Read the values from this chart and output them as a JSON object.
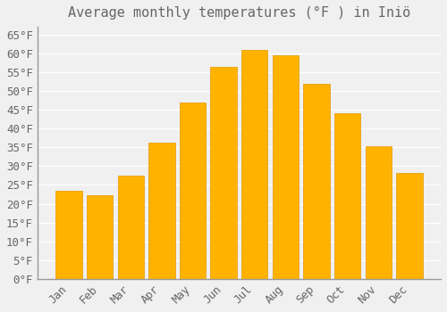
{
  "title": "Average monthly temperatures (°F ) in Iniö",
  "months": [
    "Jan",
    "Feb",
    "Mar",
    "Apr",
    "May",
    "Jun",
    "Jul",
    "Aug",
    "Sep",
    "Oct",
    "Nov",
    "Dec"
  ],
  "values": [
    23.5,
    22.3,
    27.5,
    36.3,
    47.0,
    56.3,
    60.8,
    59.5,
    51.8,
    44.1,
    35.4,
    28.1
  ],
  "bar_color_top": "#FFB300",
  "bar_color_bottom": "#FFA000",
  "bar_edge_color": "#E69500",
  "background_color": "#F0F0F0",
  "grid_color": "#FFFFFF",
  "text_color": "#666666",
  "ylim": [
    0,
    67
  ],
  "yticks": [
    0,
    5,
    10,
    15,
    20,
    25,
    30,
    35,
    40,
    45,
    50,
    55,
    60,
    65
  ],
  "title_fontsize": 11,
  "tick_fontsize": 9,
  "font_family": "monospace"
}
